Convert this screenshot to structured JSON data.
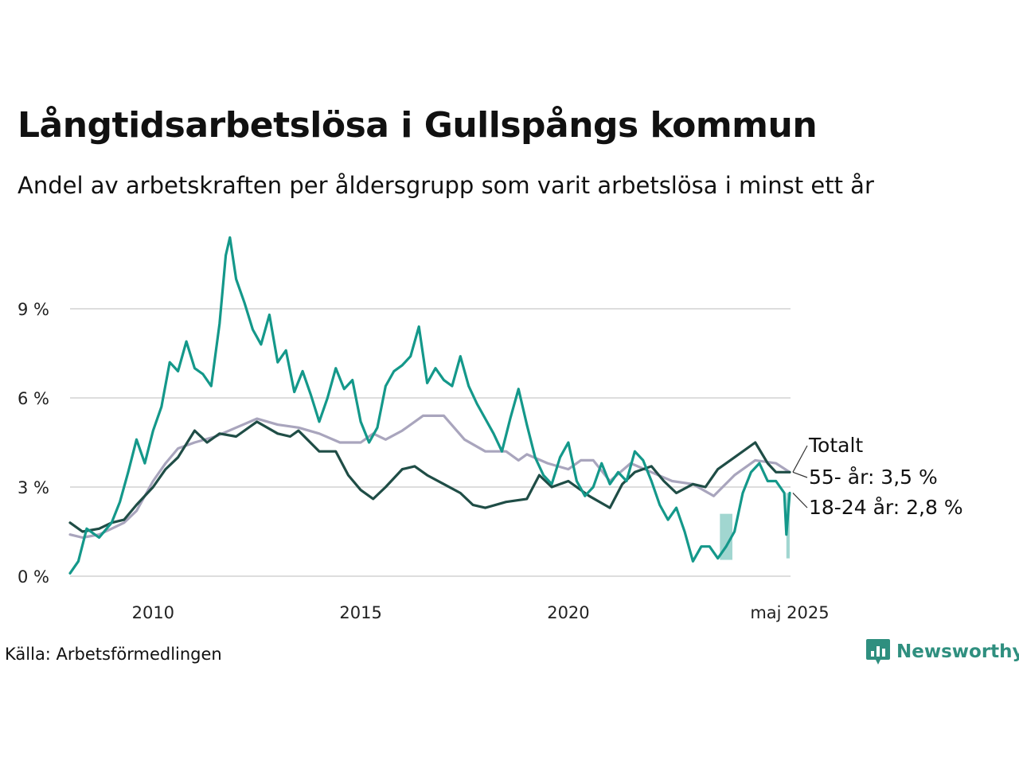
{
  "title": "Långtidsarbetslösa i Gullspångs kommun",
  "subtitle": "Andel av arbetskraften per åldersgrupp som varit arbetslösa i minst ett år",
  "source": "Källa: Arbetsförmedlingen",
  "brand": {
    "name": "Newsworthy",
    "icon": "bar-chart-speech-bubble-icon",
    "color": "#2f8f7f"
  },
  "chart_data": {
    "type": "line",
    "title": "Långtidsarbetslösa i Gullspångs kommun",
    "subtitle": "Andel av arbetskraften per åldersgrupp som varit arbetslösa i minst ett år",
    "xlabel": "",
    "ylabel": "",
    "x_range": [
      2008.0,
      2025.35
    ],
    "ylim": [
      0,
      12
    ],
    "y_ticks": [
      {
        "value": 0,
        "label": "0 %"
      },
      {
        "value": 3,
        "label": "3 %"
      },
      {
        "value": 6,
        "label": "6 %"
      },
      {
        "value": 9,
        "label": "9 %"
      }
    ],
    "x_ticks": [
      {
        "value": 2010,
        "label": "2010"
      },
      {
        "value": 2015,
        "label": "2015"
      },
      {
        "value": 2020,
        "label": "2020"
      },
      {
        "value": 2025.33,
        "label": "maj 2025"
      }
    ],
    "grid": true,
    "legend": "direct labels at right end of lines",
    "series": [
      {
        "name": "55- år",
        "end_label": "55- år: 3,5 %",
        "color": "#a9a5bd",
        "points": [
          [
            2008.0,
            1.4
          ],
          [
            2008.3,
            1.3
          ],
          [
            2008.7,
            1.4
          ],
          [
            2009.0,
            1.6
          ],
          [
            2009.3,
            1.8
          ],
          [
            2009.6,
            2.2
          ],
          [
            2010.0,
            3.2
          ],
          [
            2010.3,
            3.8
          ],
          [
            2010.6,
            4.3
          ],
          [
            2011.0,
            4.5
          ],
          [
            2011.5,
            4.7
          ],
          [
            2012.0,
            5.0
          ],
          [
            2012.5,
            5.3
          ],
          [
            2013.0,
            5.1
          ],
          [
            2013.5,
            5.0
          ],
          [
            2014.0,
            4.8
          ],
          [
            2014.5,
            4.5
          ],
          [
            2015.0,
            4.5
          ],
          [
            2015.3,
            4.8
          ],
          [
            2015.6,
            4.6
          ],
          [
            2016.0,
            4.9
          ],
          [
            2016.5,
            5.4
          ],
          [
            2017.0,
            5.4
          ],
          [
            2017.5,
            4.6
          ],
          [
            2018.0,
            4.2
          ],
          [
            2018.5,
            4.2
          ],
          [
            2018.8,
            3.9
          ],
          [
            2019.0,
            4.1
          ],
          [
            2019.5,
            3.8
          ],
          [
            2020.0,
            3.6
          ],
          [
            2020.3,
            3.9
          ],
          [
            2020.6,
            3.9
          ],
          [
            2021.0,
            3.2
          ],
          [
            2021.5,
            3.8
          ],
          [
            2022.0,
            3.5
          ],
          [
            2022.5,
            3.2
          ],
          [
            2023.0,
            3.1
          ],
          [
            2023.5,
            2.7
          ],
          [
            2024.0,
            3.4
          ],
          [
            2024.5,
            3.9
          ],
          [
            2025.0,
            3.8
          ],
          [
            2025.33,
            3.5
          ]
        ]
      },
      {
        "name": "Totalt",
        "end_label": "Totalt",
        "color": "#1f4d46",
        "points": [
          [
            2008.0,
            1.8
          ],
          [
            2008.3,
            1.5
          ],
          [
            2008.7,
            1.6
          ],
          [
            2009.0,
            1.8
          ],
          [
            2009.3,
            1.9
          ],
          [
            2009.6,
            2.4
          ],
          [
            2010.0,
            3.0
          ],
          [
            2010.3,
            3.6
          ],
          [
            2010.6,
            4.0
          ],
          [
            2011.0,
            4.9
          ],
          [
            2011.3,
            4.5
          ],
          [
            2011.6,
            4.8
          ],
          [
            2012.0,
            4.7
          ],
          [
            2012.5,
            5.2
          ],
          [
            2013.0,
            4.8
          ],
          [
            2013.3,
            4.7
          ],
          [
            2013.5,
            4.9
          ],
          [
            2014.0,
            4.2
          ],
          [
            2014.4,
            4.2
          ],
          [
            2014.7,
            3.4
          ],
          [
            2015.0,
            2.9
          ],
          [
            2015.3,
            2.6
          ],
          [
            2015.6,
            3.0
          ],
          [
            2016.0,
            3.6
          ],
          [
            2016.3,
            3.7
          ],
          [
            2016.6,
            3.4
          ],
          [
            2017.0,
            3.1
          ],
          [
            2017.4,
            2.8
          ],
          [
            2017.7,
            2.4
          ],
          [
            2018.0,
            2.3
          ],
          [
            2018.5,
            2.5
          ],
          [
            2019.0,
            2.6
          ],
          [
            2019.3,
            3.4
          ],
          [
            2019.6,
            3.0
          ],
          [
            2020.0,
            3.2
          ],
          [
            2020.5,
            2.7
          ],
          [
            2021.0,
            2.3
          ],
          [
            2021.3,
            3.1
          ],
          [
            2021.6,
            3.5
          ],
          [
            2022.0,
            3.7
          ],
          [
            2022.3,
            3.2
          ],
          [
            2022.6,
            2.8
          ],
          [
            2023.0,
            3.1
          ],
          [
            2023.3,
            3.0
          ],
          [
            2023.6,
            3.6
          ],
          [
            2024.0,
            4.0
          ],
          [
            2024.5,
            4.5
          ],
          [
            2024.8,
            3.8
          ],
          [
            2025.0,
            3.5
          ],
          [
            2025.33,
            3.5
          ]
        ]
      },
      {
        "name": "18-24 år",
        "end_label": "18-24 år: 2,8 %",
        "color": "#14988a",
        "points": [
          [
            2008.0,
            0.1
          ],
          [
            2008.2,
            0.5
          ],
          [
            2008.4,
            1.6
          ],
          [
            2008.7,
            1.3
          ],
          [
            2009.0,
            1.8
          ],
          [
            2009.2,
            2.5
          ],
          [
            2009.4,
            3.5
          ],
          [
            2009.6,
            4.6
          ],
          [
            2009.8,
            3.8
          ],
          [
            2010.0,
            4.9
          ],
          [
            2010.2,
            5.7
          ],
          [
            2010.4,
            7.2
          ],
          [
            2010.6,
            6.9
          ],
          [
            2010.8,
            7.9
          ],
          [
            2011.0,
            7.0
          ],
          [
            2011.2,
            6.8
          ],
          [
            2011.4,
            6.4
          ],
          [
            2011.6,
            8.5
          ],
          [
            2011.75,
            10.8
          ],
          [
            2011.85,
            11.4
          ],
          [
            2012.0,
            10.0
          ],
          [
            2012.2,
            9.2
          ],
          [
            2012.4,
            8.3
          ],
          [
            2012.6,
            7.8
          ],
          [
            2012.8,
            8.8
          ],
          [
            2013.0,
            7.2
          ],
          [
            2013.2,
            7.6
          ],
          [
            2013.4,
            6.2
          ],
          [
            2013.6,
            6.9
          ],
          [
            2013.8,
            6.1
          ],
          [
            2014.0,
            5.2
          ],
          [
            2014.2,
            6.0
          ],
          [
            2014.4,
            7.0
          ],
          [
            2014.6,
            6.3
          ],
          [
            2014.8,
            6.6
          ],
          [
            2015.0,
            5.2
          ],
          [
            2015.2,
            4.5
          ],
          [
            2015.4,
            5.0
          ],
          [
            2015.6,
            6.4
          ],
          [
            2015.8,
            6.9
          ],
          [
            2016.0,
            7.1
          ],
          [
            2016.2,
            7.4
          ],
          [
            2016.4,
            8.4
          ],
          [
            2016.6,
            6.5
          ],
          [
            2016.8,
            7.0
          ],
          [
            2017.0,
            6.6
          ],
          [
            2017.2,
            6.4
          ],
          [
            2017.4,
            7.4
          ],
          [
            2017.6,
            6.4
          ],
          [
            2017.8,
            5.8
          ],
          [
            2018.0,
            5.3
          ],
          [
            2018.2,
            4.8
          ],
          [
            2018.4,
            4.2
          ],
          [
            2018.6,
            5.3
          ],
          [
            2018.8,
            6.3
          ],
          [
            2019.0,
            5.1
          ],
          [
            2019.2,
            4.0
          ],
          [
            2019.4,
            3.4
          ],
          [
            2019.6,
            3.1
          ],
          [
            2019.8,
            4.0
          ],
          [
            2020.0,
            4.5
          ],
          [
            2020.2,
            3.2
          ],
          [
            2020.4,
            2.7
          ],
          [
            2020.6,
            3.0
          ],
          [
            2020.8,
            3.8
          ],
          [
            2021.0,
            3.1
          ],
          [
            2021.2,
            3.5
          ],
          [
            2021.4,
            3.2
          ],
          [
            2021.6,
            4.2
          ],
          [
            2021.8,
            3.9
          ],
          [
            2022.0,
            3.2
          ],
          [
            2022.2,
            2.4
          ],
          [
            2022.4,
            1.9
          ],
          [
            2022.6,
            2.3
          ],
          [
            2022.8,
            1.5
          ],
          [
            2023.0,
            0.5
          ],
          [
            2023.2,
            1.0
          ],
          [
            2023.4,
            1.0
          ],
          [
            2023.6,
            0.6
          ],
          [
            2023.8,
            1.0
          ],
          [
            2024.0,
            1.5
          ],
          [
            2024.2,
            2.8
          ],
          [
            2024.4,
            3.5
          ],
          [
            2024.6,
            3.8
          ],
          [
            2024.8,
            3.2
          ],
          [
            2025.0,
            3.2
          ],
          [
            2025.2,
            2.8
          ],
          [
            2025.25,
            1.4
          ],
          [
            2025.33,
            2.8
          ]
        ]
      }
    ],
    "bands": [
      {
        "series": "18-24 år",
        "color": "#14988a",
        "opacity": 0.4,
        "points": [
          [
            2023.65,
            0.55,
            2.1
          ],
          [
            2023.95,
            0.55,
            2.1
          ]
        ]
      },
      {
        "series": "18-24 år",
        "color": "#14988a",
        "opacity": 0.4,
        "points": [
          [
            2025.25,
            0.6,
            2.8
          ],
          [
            2025.33,
            0.6,
            2.8
          ]
        ]
      }
    ]
  }
}
